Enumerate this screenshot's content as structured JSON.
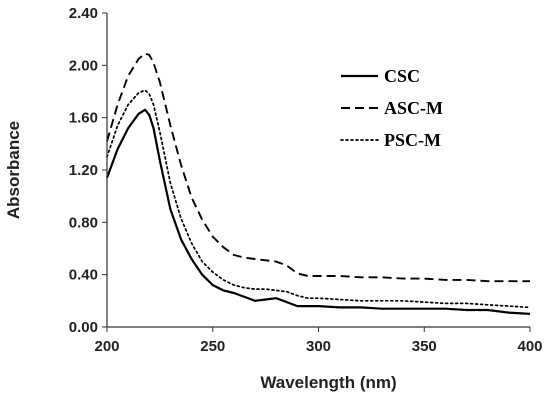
{
  "chart_data": {
    "type": "line",
    "title": "",
    "xlabel": "Wavelength (nm)",
    "ylabel": "Absorbance",
    "xlim": [
      200,
      400
    ],
    "ylim": [
      0,
      2.4
    ],
    "xticks": [
      "200",
      "250",
      "300",
      "350",
      "400"
    ],
    "yticks": [
      "0.00",
      "0.40",
      "0.80",
      "1.20",
      "1.60",
      "2.00",
      "2.40"
    ],
    "grid": false,
    "legend_position": "top-right",
    "series": [
      {
        "name": "CSC",
        "style": "solid",
        "color": "#000000",
        "x": [
          200,
          205,
          210,
          215,
          218,
          220,
          222,
          225,
          230,
          235,
          240,
          245,
          250,
          255,
          260,
          265,
          270,
          275,
          280,
          285,
          290,
          295,
          300,
          310,
          320,
          330,
          340,
          350,
          360,
          370,
          380,
          390,
          400
        ],
        "y": [
          1.14,
          1.36,
          1.52,
          1.63,
          1.66,
          1.62,
          1.52,
          1.27,
          0.9,
          0.67,
          0.52,
          0.4,
          0.32,
          0.28,
          0.26,
          0.23,
          0.2,
          0.21,
          0.22,
          0.19,
          0.16,
          0.16,
          0.16,
          0.15,
          0.15,
          0.14,
          0.14,
          0.14,
          0.14,
          0.13,
          0.13,
          0.11,
          0.1
        ]
      },
      {
        "name": "ASC-M",
        "style": "dashed",
        "color": "#000000",
        "x": [
          200,
          205,
          210,
          215,
          218,
          220,
          222,
          225,
          230,
          235,
          240,
          245,
          250,
          255,
          260,
          265,
          270,
          275,
          280,
          285,
          290,
          295,
          300,
          310,
          320,
          330,
          340,
          350,
          360,
          370,
          380,
          390,
          400
        ],
        "y": [
          1.42,
          1.7,
          1.92,
          2.05,
          2.09,
          2.08,
          2.02,
          1.87,
          1.54,
          1.24,
          0.99,
          0.82,
          0.69,
          0.61,
          0.55,
          0.53,
          0.52,
          0.51,
          0.5,
          0.47,
          0.41,
          0.39,
          0.39,
          0.39,
          0.38,
          0.38,
          0.37,
          0.37,
          0.36,
          0.36,
          0.35,
          0.35,
          0.35
        ]
      },
      {
        "name": "PSC-M",
        "style": "dotted",
        "color": "#000000",
        "x": [
          200,
          205,
          210,
          215,
          218,
          220,
          222,
          225,
          230,
          235,
          240,
          245,
          250,
          255,
          260,
          265,
          270,
          275,
          280,
          285,
          290,
          295,
          300,
          310,
          320,
          330,
          340,
          350,
          360,
          370,
          380,
          390,
          400
        ],
        "y": [
          1.3,
          1.54,
          1.7,
          1.79,
          1.81,
          1.78,
          1.7,
          1.49,
          1.1,
          0.83,
          0.64,
          0.5,
          0.42,
          0.36,
          0.32,
          0.3,
          0.29,
          0.29,
          0.28,
          0.27,
          0.24,
          0.22,
          0.22,
          0.21,
          0.2,
          0.2,
          0.2,
          0.19,
          0.18,
          0.18,
          0.17,
          0.16,
          0.15
        ]
      }
    ]
  }
}
